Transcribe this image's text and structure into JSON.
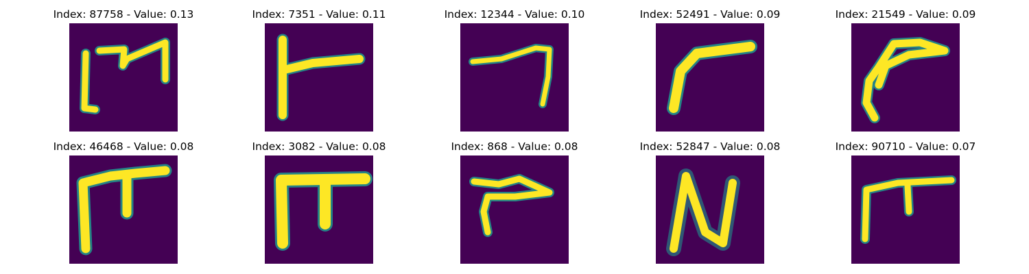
{
  "colors": {
    "background": "#440154",
    "stroke": "#fde725",
    "edge": "#21918c"
  },
  "panels": [
    {
      "index_label": "Index: 87758 - Value: 0.13",
      "glyph": "stroke-87758"
    },
    {
      "index_label": "Index: 7351 - Value: 0.11",
      "glyph": "stroke-7351"
    },
    {
      "index_label": "Index: 12344 - Value: 0.10",
      "glyph": "stroke-12344"
    },
    {
      "index_label": "Index: 52491 - Value: 0.09",
      "glyph": "stroke-52491"
    },
    {
      "index_label": "Index: 21549 - Value: 0.09",
      "glyph": "stroke-21549"
    },
    {
      "index_label": "Index: 46468 - Value: 0.08",
      "glyph": "stroke-46468"
    },
    {
      "index_label": "Index: 3082 - Value: 0.08",
      "glyph": "stroke-3082"
    },
    {
      "index_label": "Index: 868 - Value: 0.08",
      "glyph": "stroke-868"
    },
    {
      "index_label": "Index: 52847 - Value: 0.08",
      "glyph": "stroke-52847"
    },
    {
      "index_label": "Index: 90710 - Value: 0.07",
      "glyph": "stroke-90710"
    }
  ]
}
